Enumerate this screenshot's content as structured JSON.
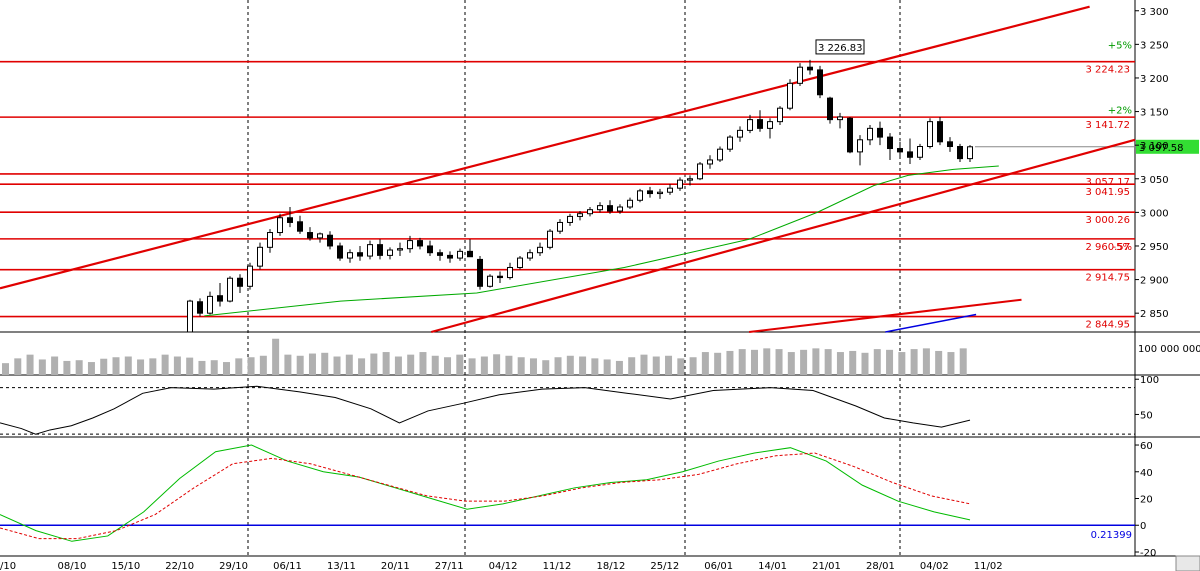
{
  "chart_data": [
    {
      "type": "candlestick",
      "y_ticks": [
        "3 300",
        "3 250",
        "3 200",
        "3 150",
        "3 100",
        "3 050",
        "3 000",
        "2 950",
        "2 900",
        "2 850"
      ],
      "ylim": [
        2822,
        3316
      ],
      "x_tick_labels": [
        "/10",
        "08/10",
        "15/10",
        "22/10",
        "29/10",
        "06/11",
        "13/11",
        "20/11",
        "27/11",
        "04/12",
        "11/12",
        "18/12",
        "25/12",
        "06/01",
        "14/01",
        "21/01",
        "28/01",
        "04/02",
        "11/02"
      ],
      "horizontal_levels": [
        {
          "label": "3 224.23",
          "value": 3224.23
        },
        {
          "label": "3 141.72",
          "value": 3141.72
        },
        {
          "label": "3 057.17",
          "value": 3057.17
        },
        {
          "label": "3 041.95",
          "value": 3041.95
        },
        {
          "label": "3 000.26",
          "value": 3000.26
        },
        {
          "label": "2 960.57",
          "value": 2960.57
        },
        {
          "label": "2 914.75",
          "value": 2914.75
        },
        {
          "label": "2 844.95",
          "value": 2844.95
        }
      ],
      "pct_labels": [
        {
          "label": "+5%",
          "value": 3250
        },
        {
          "label": "+2%",
          "value": 3153
        },
        {
          "label": "-5%",
          "value": 2950
        }
      ],
      "last_price": {
        "label": "3 097.58",
        "value": 3097.58
      },
      "peak_annotation": {
        "label": "3 226.83",
        "value": 3226.83
      },
      "candles": [
        [
          2822,
          2870,
          2815,
          2868
        ],
        [
          2867,
          2872,
          2845,
          2850
        ],
        [
          2850,
          2882,
          2848,
          2875
        ],
        [
          2876,
          2895,
          2860,
          2868
        ],
        [
          2868,
          2905,
          2866,
          2902
        ],
        [
          2902,
          2908,
          2880,
          2890
        ],
        [
          2890,
          2925,
          2885,
          2920
        ],
        [
          2920,
          2955,
          2915,
          2948
        ],
        [
          2948,
          2975,
          2940,
          2970
        ],
        [
          2970,
          2998,
          2965,
          2992
        ],
        [
          2992,
          3008,
          2978,
          2985
        ],
        [
          2986,
          2995,
          2968,
          2972
        ],
        [
          2970,
          2978,
          2958,
          2962
        ],
        [
          2962,
          2970,
          2955,
          2968
        ],
        [
          2966,
          2972,
          2945,
          2950
        ],
        [
          2950,
          2955,
          2928,
          2932
        ],
        [
          2932,
          2945,
          2925,
          2940
        ],
        [
          2940,
          2950,
          2928,
          2935
        ],
        [
          2935,
          2958,
          2930,
          2952
        ],
        [
          2952,
          2960,
          2930,
          2936
        ],
        [
          2936,
          2948,
          2930,
          2944
        ],
        [
          2944,
          2955,
          2935,
          2946
        ],
        [
          2946,
          2965,
          2940,
          2958
        ],
        [
          2958,
          2962,
          2945,
          2950
        ],
        [
          2950,
          2958,
          2935,
          2940
        ],
        [
          2940,
          2945,
          2928,
          2936
        ],
        [
          2936,
          2942,
          2925,
          2932
        ],
        [
          2932,
          2946,
          2928,
          2942
        ],
        [
          2942,
          2960,
          2935,
          2934
        ],
        [
          2930,
          2935,
          2885,
          2890
        ],
        [
          2890,
          2908,
          2888,
          2905
        ],
        [
          2905,
          2912,
          2895,
          2903
        ],
        [
          2903,
          2925,
          2900,
          2918
        ],
        [
          2918,
          2935,
          2915,
          2932
        ],
        [
          2932,
          2945,
          2928,
          2940
        ],
        [
          2940,
          2955,
          2935,
          2948
        ],
        [
          2948,
          2975,
          2945,
          2972
        ],
        [
          2972,
          2990,
          2968,
          2985
        ],
        [
          2985,
          2998,
          2980,
          2994
        ],
        [
          2994,
          3002,
          2988,
          2998
        ],
        [
          2998,
          3008,
          2994,
          3004
        ],
        [
          3004,
          3015,
          3000,
          3010
        ],
        [
          3010,
          3018,
          2998,
          3002
        ],
        [
          3002,
          3012,
          2998,
          3008
        ],
        [
          3008,
          3022,
          3005,
          3018
        ],
        [
          3018,
          3035,
          3015,
          3032
        ],
        [
          3032,
          3038,
          3022,
          3028
        ],
        [
          3028,
          3035,
          3020,
          3030
        ],
        [
          3030,
          3042,
          3026,
          3036
        ],
        [
          3036,
          3052,
          3032,
          3048
        ],
        [
          3048,
          3055,
          3040,
          3050
        ],
        [
          3050,
          3075,
          3048,
          3072
        ],
        [
          3072,
          3085,
          3065,
          3078
        ],
        [
          3078,
          3098,
          3075,
          3094
        ],
        [
          3094,
          3115,
          3090,
          3112
        ],
        [
          3112,
          3128,
          3105,
          3122
        ],
        [
          3122,
          3145,
          3118,
          3138
        ],
        [
          3138,
          3152,
          3120,
          3125
        ],
        [
          3125,
          3140,
          3110,
          3135
        ],
        [
          3135,
          3158,
          3130,
          3155
        ],
        [
          3155,
          3198,
          3152,
          3192
        ],
        [
          3192,
          3222,
          3188,
          3216
        ],
        [
          3216,
          3226.83,
          3205,
          3212
        ],
        [
          3212,
          3218,
          3170,
          3175
        ],
        [
          3170,
          3172,
          3132,
          3138
        ],
        [
          3138,
          3148,
          3125,
          3142
        ],
        [
          3140,
          3142,
          3088,
          3090
        ],
        [
          3090,
          3115,
          3070,
          3108
        ],
        [
          3108,
          3130,
          3100,
          3125
        ],
        [
          3125,
          3135,
          3100,
          3112
        ],
        [
          3112,
          3118,
          3078,
          3095
        ],
        [
          3095,
          3105,
          3080,
          3090
        ],
        [
          3090,
          3110,
          3072,
          3082
        ],
        [
          3082,
          3102,
          3078,
          3098
        ],
        [
          3098,
          3140,
          3095,
          3135
        ],
        [
          3135,
          3142,
          3100,
          3105
        ],
        [
          3105,
          3112,
          3090,
          3098
        ],
        [
          3098,
          3102,
          3075,
          3080
        ],
        [
          3080,
          3100,
          3075,
          3097.58
        ]
      ],
      "ma_green": [
        [
          18,
          2846
        ],
        [
          30,
          2868
        ],
        [
          42,
          2880
        ],
        [
          55,
          2918
        ],
        [
          66,
          2960
        ],
        [
          72,
          3000
        ],
        [
          77,
          3040
        ],
        [
          80,
          3055
        ],
        [
          84,
          3064
        ],
        [
          88,
          3069
        ]
      ],
      "lower_panel_lines": {
        "channel_upper": [
          [
            0,
            2887
          ],
          [
            96,
            3306
          ]
        ],
        "channel_lower": [
          [
            38,
            2822
          ],
          [
            100,
            3108
          ]
        ],
        "red_small": [
          [
            66,
            2822
          ],
          [
            90,
            2870
          ]
        ],
        "blue_small": [
          [
            78,
            2822
          ],
          [
            86,
            2848
          ]
        ]
      },
      "volume_label": "100 000 000",
      "volume": [
        0.32,
        0.45,
        0.55,
        0.42,
        0.5,
        0.38,
        0.4,
        0.35,
        0.44,
        0.48,
        0.5,
        0.42,
        0.45,
        0.55,
        0.5,
        0.47,
        0.38,
        0.4,
        0.35,
        0.45,
        0.48,
        0.52,
        0.98,
        0.55,
        0.52,
        0.58,
        0.6,
        0.5,
        0.55,
        0.45,
        0.58,
        0.62,
        0.5,
        0.55,
        0.62,
        0.52,
        0.48,
        0.55,
        0.45,
        0.5,
        0.56,
        0.52,
        0.48,
        0.45,
        0.4,
        0.48,
        0.52,
        0.5,
        0.45,
        0.42,
        0.38,
        0.48,
        0.55,
        0.5,
        0.52,
        0.45,
        0.48,
        0.62,
        0.6,
        0.65,
        0.7,
        0.68,
        0.72,
        0.7,
        0.62,
        0.68,
        0.72,
        0.7,
        0.62,
        0.65,
        0.6,
        0.7,
        0.68,
        0.62,
        0.7,
        0.72,
        0.65,
        0.62,
        0.72
      ],
      "osc1": {
        "ticks": [
          "100",
          "50"
        ],
        "ylim": [
          18,
          106
        ],
        "values": [
          [
            0,
            38
          ],
          [
            3,
            30
          ],
          [
            5,
            22
          ],
          [
            7,
            28
          ],
          [
            10,
            34
          ],
          [
            13,
            45
          ],
          [
            16,
            58
          ],
          [
            20,
            80
          ],
          [
            24,
            88
          ],
          [
            30,
            86
          ],
          [
            36,
            90
          ],
          [
            42,
            82
          ],
          [
            47,
            74
          ],
          [
            52,
            58
          ],
          [
            56,
            38
          ],
          [
            60,
            55
          ],
          [
            65,
            66
          ],
          [
            70,
            78
          ],
          [
            76,
            86
          ],
          [
            82,
            88
          ],
          [
            88,
            80
          ],
          [
            94,
            72
          ],
          [
            100,
            84
          ],
          [
            108,
            88
          ],
          [
            114,
            84
          ],
          [
            120,
            62
          ],
          [
            124,
            45
          ],
          [
            128,
            38
          ],
          [
            132,
            32
          ],
          [
            136,
            42
          ]
        ]
      },
      "osc2": {
        "ticks": [
          "60",
          "40",
          "20",
          "0",
          "-20"
        ],
        "ylim": [
          -23,
          66
        ],
        "green": [
          [
            0,
            8
          ],
          [
            4,
            -4
          ],
          [
            8,
            -12
          ],
          [
            12,
            -8
          ],
          [
            16,
            10
          ],
          [
            20,
            35
          ],
          [
            24,
            55
          ],
          [
            28,
            60
          ],
          [
            32,
            48
          ],
          [
            36,
            40
          ],
          [
            40,
            36
          ],
          [
            44,
            28
          ],
          [
            48,
            20
          ],
          [
            52,
            12
          ],
          [
            56,
            16
          ],
          [
            60,
            22
          ],
          [
            64,
            28
          ],
          [
            68,
            32
          ],
          [
            72,
            34
          ],
          [
            76,
            40
          ],
          [
            80,
            48
          ],
          [
            84,
            54
          ],
          [
            88,
            58
          ],
          [
            92,
            48
          ],
          [
            96,
            30
          ],
          [
            100,
            18
          ],
          [
            104,
            10
          ],
          [
            108,
            4
          ]
        ],
        "red": [
          [
            0,
            -2
          ],
          [
            4,
            -10
          ],
          [
            8,
            -10
          ],
          [
            12,
            -4
          ],
          [
            16,
            8
          ],
          [
            20,
            28
          ],
          [
            24,
            46
          ],
          [
            28,
            50
          ],
          [
            32,
            46
          ],
          [
            36,
            38
          ],
          [
            40,
            30
          ],
          [
            44,
            22
          ],
          [
            48,
            18
          ],
          [
            52,
            18
          ],
          [
            56,
            22
          ],
          [
            60,
            28
          ],
          [
            64,
            32
          ],
          [
            68,
            34
          ],
          [
            72,
            38
          ],
          [
            76,
            46
          ],
          [
            80,
            52
          ],
          [
            84,
            54
          ],
          [
            88,
            44
          ],
          [
            92,
            32
          ],
          [
            96,
            22
          ],
          [
            100,
            16
          ]
        ],
        "zero_label": "0.21399"
      }
    }
  ]
}
